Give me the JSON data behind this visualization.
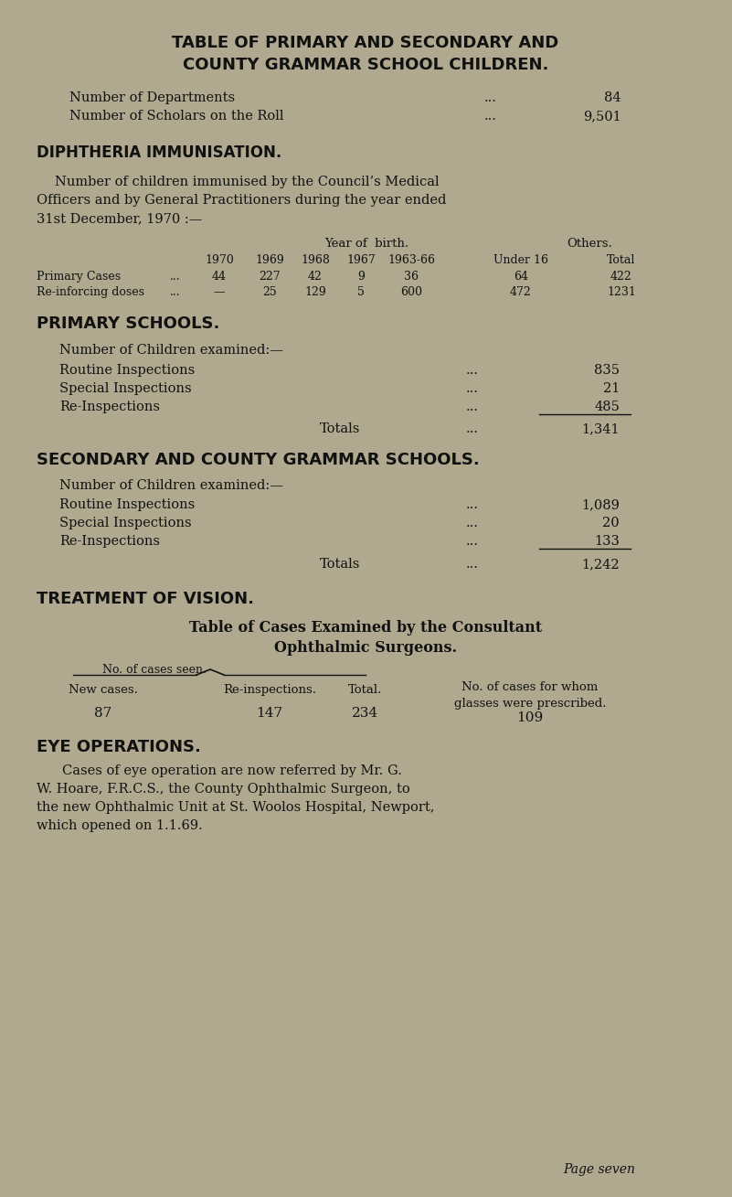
{
  "bg_color": "#b0a98f",
  "text_color": "#111111",
  "page_width": 8.01,
  "page_height": 13.09,
  "dpi": 100,
  "title_line1": "TABLE OF PRIMARY AND SECONDARY AND",
  "title_line2": "COUNTY GRAMMAR SCHOOL CHILDREN.",
  "dept_label": "Number of Departments",
  "dept_dots": "...",
  "dept_value": "84",
  "scholars_label": "Number of Scholars on the Roll",
  "scholars_dots": "...",
  "scholars_value": "9,501",
  "diph_heading": "DIPHTHERIA IMMUNISATION.",
  "diph_para_line1": "Number of children immunised by the Council’s Medical",
  "diph_para_line2": "Officers and by General Practitioners during the year ended",
  "diph_para_line3": "31st December, 1970 :—",
  "diph_col_header1": "Year of  birth.",
  "diph_col_header2": "Others.",
  "diph_sub_headers": [
    "1970",
    "1969",
    "1968",
    "1967",
    "1963-66",
    "Under 16",
    "Total"
  ],
  "diph_row1_label": "Primary Cases",
  "diph_row1_dots": "...",
  "diph_row1_vals": [
    "44",
    "227",
    "42",
    "9",
    "36",
    "64",
    "422"
  ],
  "diph_row2_label": "Re-inforcing doses",
  "diph_row2_dots": "...",
  "diph_row2_vals": [
    "—",
    "25",
    "129",
    "5",
    "600",
    "472",
    "1231"
  ],
  "primary_heading": "PRIMARY SCHOOLS.",
  "primary_sub": "Number of Children examined:—",
  "primary_row1_label": "Routine Inspections",
  "primary_row1_dots": "...",
  "primary_row1_val": "835",
  "primary_row2_label": "Special Inspections",
  "primary_row2_dots": "...",
  "primary_row2_val": "21",
  "primary_row3_label": "Re-Inspections",
  "primary_row3_dots": "...",
  "primary_row3_val": "485",
  "primary_total_label": "Totals",
  "primary_total_dots": "...",
  "primary_total_val": "1,341",
  "secondary_heading": "SECONDARY AND COUNTY GRAMMAR SCHOOLS.",
  "secondary_sub": "Number of Children examined:—",
  "secondary_row1_label": "Routine Inspections",
  "secondary_row1_dots": "...",
  "secondary_row1_val": "1,089",
  "secondary_row2_label": "Special Inspections",
  "secondary_row2_dots": "...",
  "secondary_row2_val": "20",
  "secondary_row3_label": "Re-Inspections",
  "secondary_row3_dots": "...",
  "secondary_row3_val": "133",
  "secondary_total_label": "Totals",
  "secondary_total_dots": "...",
  "secondary_total_val": "1,242",
  "vision_heading": "TREATMENT OF VISION.",
  "vision_table_title1": "Table of Cases Examined by the Consultant",
  "vision_table_title2": "Ophthalmic Surgeons.",
  "vision_no_cases_label": "No. of cases seen.",
  "vision_new_cases_label": "New cases.",
  "vision_reinsp_label": "Re-inspections.",
  "vision_total_label": "Total.",
  "vision_glasses_label1": "No. of cases for whom",
  "vision_glasses_label2": "glasses were prescribed.",
  "vision_new_cases_val": "87",
  "vision_reinsp_val": "147",
  "vision_total_val": "234",
  "vision_glasses_val": "109",
  "eye_heading": "EYE OPERATIONS.",
  "eye_para_line1": "Cases of eye operation are now referred by Mr. G.",
  "eye_para_line2": "W. Hoare, F.R.C.S., the County Ophthalmic Surgeon, to",
  "eye_para_line3": "the new Ophthalmic Unit at St. Woolos Hospital, Newport,",
  "eye_para_line4": "which opened on 1.1.69.",
  "page_label": "Page seven"
}
